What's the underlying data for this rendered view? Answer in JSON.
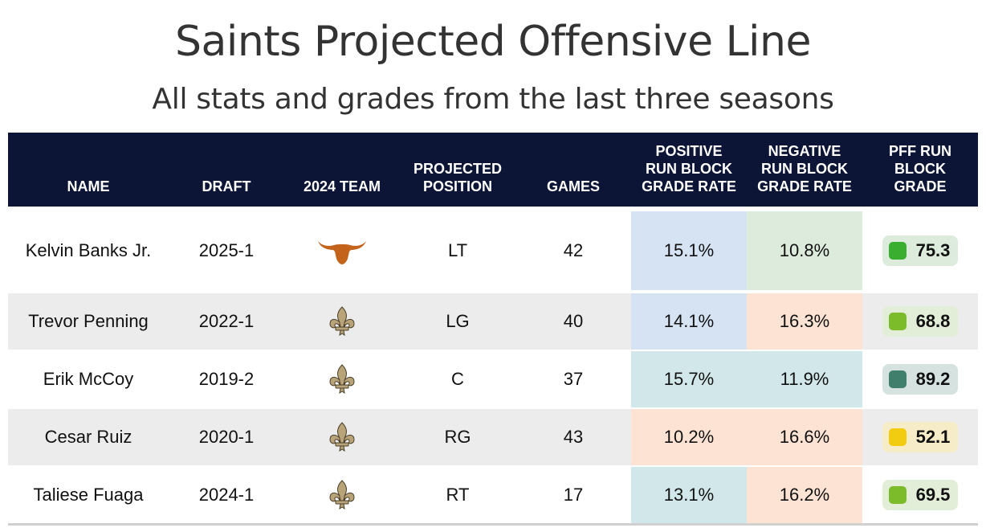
{
  "title": "Saints Projected Offensive Line",
  "subtitle": "All stats and grades from the last three seasons",
  "columns": [
    "NAME",
    "DRAFT",
    "2024 TEAM",
    "PROJECTED\nPOSITION",
    "GAMES",
    "POSITIVE\nRUN BLOCK\nGRADE RATE",
    "NEGATIVE\nRUN BLOCK\nGRADE RATE",
    "PFF RUN\nBLOCK\nGRADE"
  ],
  "rows": [
    {
      "name": "Kelvin Banks Jr.",
      "draft": "2025-1",
      "team": "longhorn-logo",
      "position": "LT",
      "games": "42",
      "pos_rate": "15.1%",
      "neg_rate": "10.8%",
      "grade": "75.3"
    },
    {
      "name": "Trevor Penning",
      "draft": "2022-1",
      "team": "fleur-de-lis-logo",
      "position": "LG",
      "games": "40",
      "pos_rate": "14.1%",
      "neg_rate": "16.3%",
      "grade": "68.8"
    },
    {
      "name": "Erik McCoy",
      "draft": "2019-2",
      "team": "fleur-de-lis-logo",
      "position": "C",
      "games": "37",
      "pos_rate": "15.7%",
      "neg_rate": "11.9%",
      "grade": "89.2"
    },
    {
      "name": "Cesar Ruiz",
      "draft": "2020-1",
      "team": "fleur-de-lis-logo",
      "position": "RG",
      "games": "43",
      "pos_rate": "10.2%",
      "neg_rate": "16.6%",
      "grade": "52.1"
    },
    {
      "name": "Taliese Fuaga",
      "draft": "2024-1",
      "team": "fleur-de-lis-logo",
      "position": "RT",
      "games": "17",
      "pos_rate": "13.1%",
      "neg_rate": "16.2%",
      "grade": "69.5"
    }
  ],
  "colors": {
    "header_bg": "#0d1536",
    "row_alt_bg": "#ececec",
    "pos_rate_bg": [
      "#d6e3f3",
      "#d6e3f3",
      "#d2e7e9",
      "#fde3d4",
      "#d2e7e9"
    ],
    "neg_rate_bg": [
      "#dcebdc",
      "#fde3d4",
      "#d2e7e9",
      "#fde3d4",
      "#fde3d4"
    ],
    "grade_pill_bg": [
      "#dcebdc",
      "#e3eed8",
      "#d5e2e0",
      "#f6ecc8",
      "#e3eed8"
    ],
    "grade_square": [
      "#3aae2f",
      "#7cbb29",
      "#3f7f6b",
      "#f2cc10",
      "#7cbb29"
    ],
    "longhorn": "#c4641c",
    "saints_gold": "#b9a47a"
  }
}
